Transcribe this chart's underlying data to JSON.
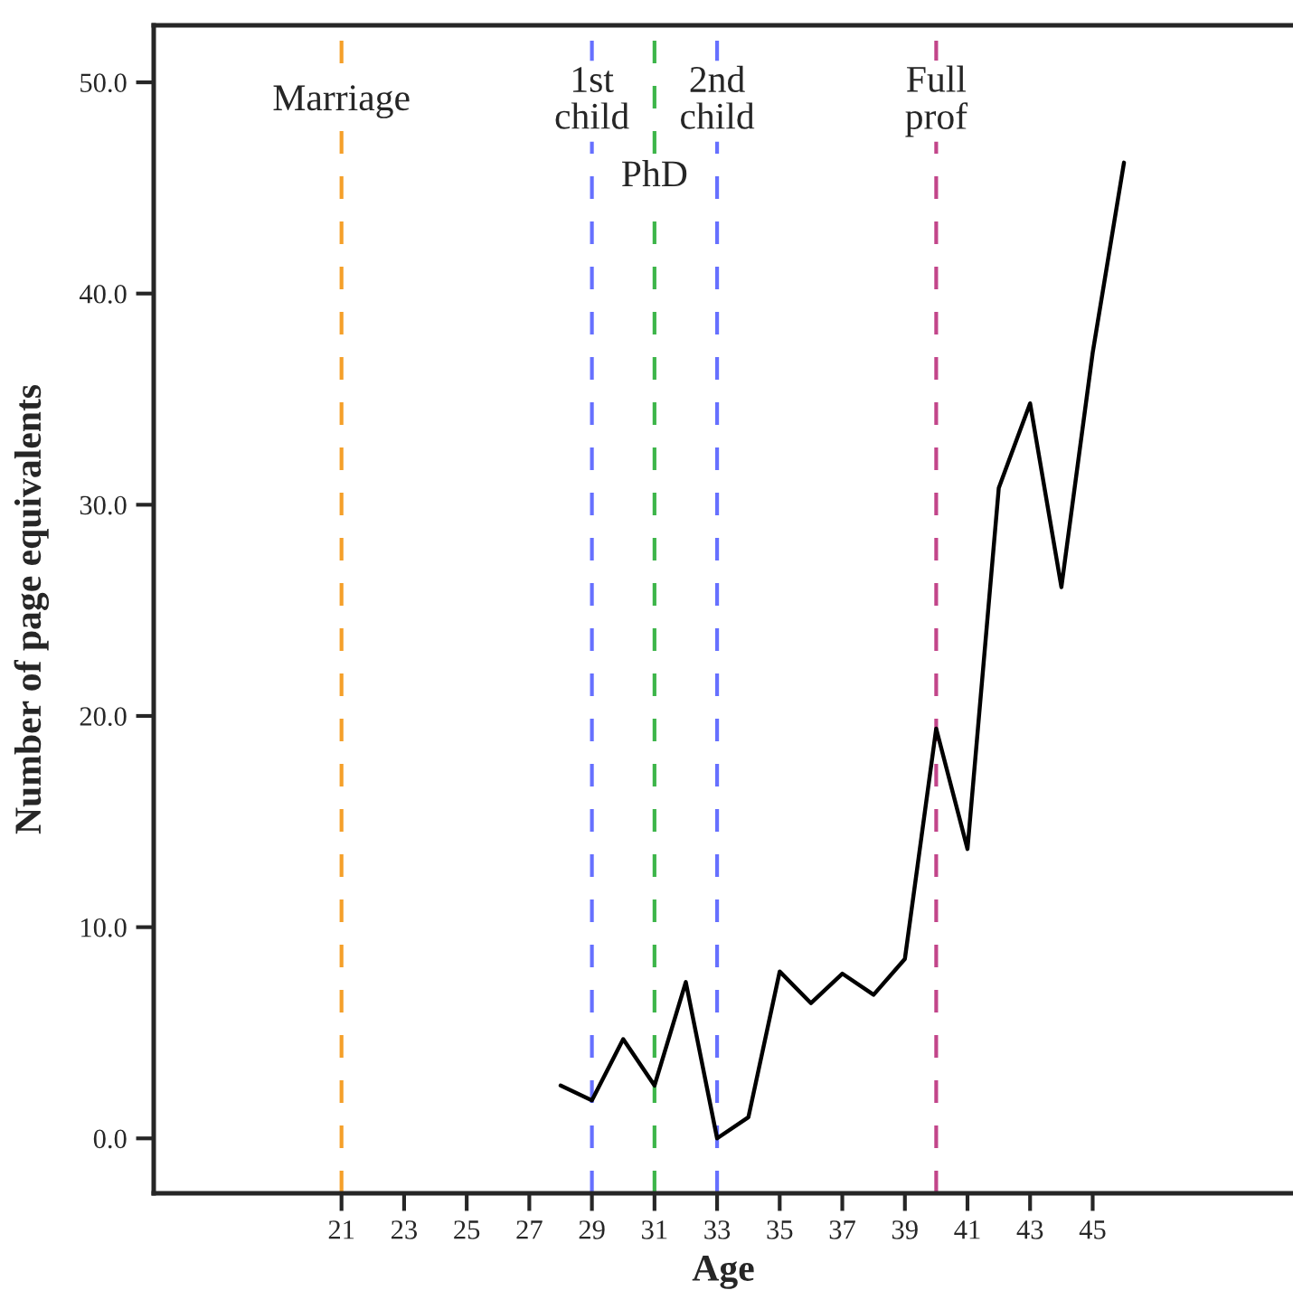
{
  "chart_data": {
    "type": "line",
    "xlabel": "Age",
    "ylabel": "Number of page equivalents",
    "x": [
      28,
      29,
      30,
      31,
      32,
      33,
      34,
      35,
      36,
      37,
      38,
      39,
      40,
      41,
      42,
      43,
      44,
      45,
      46
    ],
    "series": [
      {
        "color": "#000000",
        "values": [
          2.5,
          1.8,
          4.7,
          2.5,
          7.4,
          0.0,
          1.0,
          7.9,
          6.4,
          7.8,
          6.8,
          8.5,
          19.4,
          13.7,
          30.8,
          34.8,
          26.1,
          37.2,
          46.2
        ]
      }
    ],
    "xlim": [
      15,
      51.4
    ],
    "ylim": [
      -2.6,
      52.7
    ],
    "xticks": [
      21,
      23,
      25,
      27,
      29,
      31,
      33,
      35,
      37,
      39,
      41,
      43,
      45
    ],
    "yticks": [
      {
        "value": 0,
        "label": "0.0"
      },
      {
        "value": 10,
        "label": "10.0"
      },
      {
        "value": 20,
        "label": "20.0"
      },
      {
        "value": 30,
        "label": "30.0"
      },
      {
        "value": 40,
        "label": "40.0"
      },
      {
        "value": 50,
        "label": "50.0"
      }
    ],
    "ref_lines": [
      {
        "axis": "x",
        "value": 21,
        "label": "Marriage",
        "color": "#f5a02a",
        "line_style": "dashed"
      },
      {
        "axis": "x",
        "value": 29,
        "label": "1st\nchild",
        "color": "#6670ff",
        "line_style": "dashed"
      },
      {
        "axis": "x",
        "value": 31,
        "label": "PhD",
        "color": "#3db54a",
        "line_style": "dashed"
      },
      {
        "axis": "x",
        "value": 33,
        "label": "2nd\nchild",
        "color": "#6670ff",
        "line_style": "dashed"
      },
      {
        "axis": "x",
        "value": 40,
        "label": "Full\nprof",
        "color": "#c2458a",
        "line_style": "dashed"
      }
    ],
    "grid": false,
    "legend": false,
    "marker": "none",
    "line_style": "solid"
  }
}
